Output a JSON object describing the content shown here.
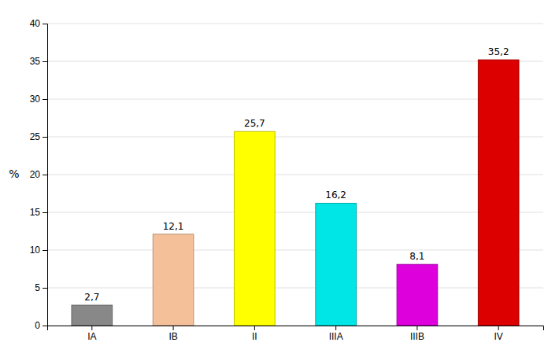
{
  "chart_data": {
    "type": "bar",
    "categories": [
      "IA",
      "IB",
      "II",
      "IIIA",
      "IIIB",
      "IV"
    ],
    "values": [
      2.7,
      12.1,
      25.7,
      16.2,
      8.1,
      35.2
    ],
    "value_labels": [
      "2,7",
      "12,1",
      "25,7",
      "16,2",
      "8,1",
      "35,2"
    ],
    "data_labels": true,
    "colors": [
      "#888888",
      "#F4C09A",
      "#FFFF00",
      "#00E5E5",
      "#DD00DD",
      "#DD0000"
    ],
    "ylabel": "%",
    "ylim": [
      0,
      40
    ],
    "yticks": [
      0,
      5,
      10,
      15,
      20,
      25,
      30,
      35,
      40
    ],
    "grid": true
  }
}
